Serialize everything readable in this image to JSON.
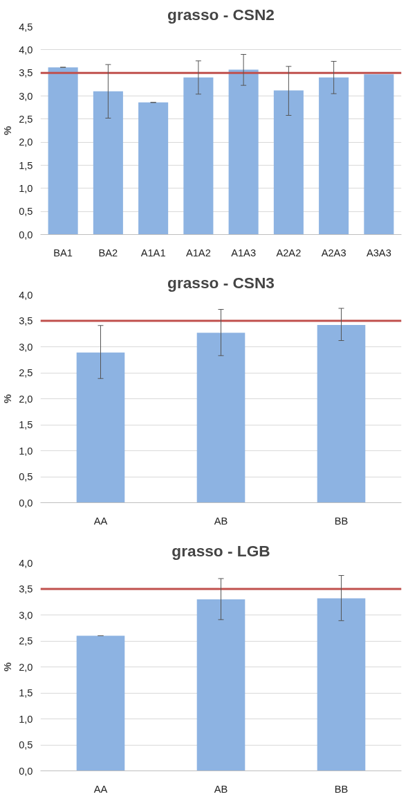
{
  "chart_data": [
    {
      "type": "bar",
      "title": "grasso - CSN2",
      "ylabel": "%",
      "categories": [
        "BA1",
        "BA2",
        "A1A1",
        "A1A2",
        "A1A3",
        "A2A2",
        "A2A3",
        "A3A3"
      ],
      "values": [
        3.62,
        3.1,
        2.86,
        3.4,
        3.57,
        3.12,
        3.4,
        3.47
      ],
      "color": "#8db3e2",
      "errors": [
        0,
        [
          2.52,
          3.68
        ],
        0,
        [
          3.04,
          3.76
        ],
        [
          3.23,
          3.9
        ],
        [
          2.58,
          3.64
        ],
        [
          3.05,
          3.75
        ],
        null
      ],
      "ylim": [
        0,
        4.5
      ],
      "yticks": [
        {
          "value": 0,
          "label": "0,0"
        },
        {
          "value": 0.5,
          "label": "0,5"
        },
        {
          "value": 1,
          "label": "1,0"
        },
        {
          "value": 1.5,
          "label": "1,5"
        },
        {
          "value": 2,
          "label": "2,0"
        },
        {
          "value": 2.5,
          "label": "2,5"
        },
        {
          "value": 3,
          "label": "3,0"
        },
        {
          "value": 3.5,
          "label": "3,5"
        },
        {
          "value": 4,
          "label": "4,0"
        },
        {
          "value": 4.5,
          "label": "4,5"
        }
      ],
      "grid": "y",
      "ref_lines": [
        {
          "axis": "y",
          "value": 3.5,
          "color": "#c0504d"
        }
      ]
    },
    {
      "type": "bar",
      "title": "grasso - CSN3",
      "ylabel": "%",
      "categories": [
        "AA",
        "AB",
        "BB"
      ],
      "values": [
        2.89,
        3.27,
        3.42
      ],
      "color": "#8db3e2",
      "errors": [
        [
          2.39,
          3.41
        ],
        [
          2.83,
          3.72
        ],
        [
          3.12,
          3.74
        ]
      ],
      "ylim": [
        0,
        4
      ],
      "yticks": [
        {
          "value": 0,
          "label": "0,0"
        },
        {
          "value": 0.5,
          "label": "0,5"
        },
        {
          "value": 1,
          "label": "1,0"
        },
        {
          "value": 1.5,
          "label": "1,5"
        },
        {
          "value": 2,
          "label": "2,0"
        },
        {
          "value": 2.5,
          "label": "2,5"
        },
        {
          "value": 3,
          "label": "3,0"
        },
        {
          "value": 3.5,
          "label": "3,5"
        },
        {
          "value": 4,
          "label": "4,0"
        }
      ],
      "grid": "y",
      "ref_lines": [
        {
          "axis": "y",
          "value": 3.5,
          "color": "#c0504d"
        }
      ]
    },
    {
      "type": "bar",
      "title": "grasso - LGB",
      "ylabel": "%",
      "categories": [
        "AA",
        "AB",
        "BB"
      ],
      "values": [
        2.6,
        3.3,
        3.32
      ],
      "color": "#8db3e2",
      "errors": [
        0,
        [
          2.91,
          3.7
        ],
        [
          2.89,
          3.76
        ]
      ],
      "ylim": [
        0,
        4
      ],
      "yticks": [
        {
          "value": 0,
          "label": "0,0"
        },
        {
          "value": 0.5,
          "label": "0,5"
        },
        {
          "value": 1,
          "label": "1,0"
        },
        {
          "value": 1.5,
          "label": "1,5"
        },
        {
          "value": 2,
          "label": "2,0"
        },
        {
          "value": 2.5,
          "label": "2,5"
        },
        {
          "value": 3,
          "label": "3,0"
        },
        {
          "value": 3.5,
          "label": "3,5"
        },
        {
          "value": 4,
          "label": "4,0"
        }
      ],
      "grid": "y",
      "ref_lines": [
        {
          "axis": "y",
          "value": 3.5,
          "color": "#c0504d"
        }
      ]
    }
  ]
}
